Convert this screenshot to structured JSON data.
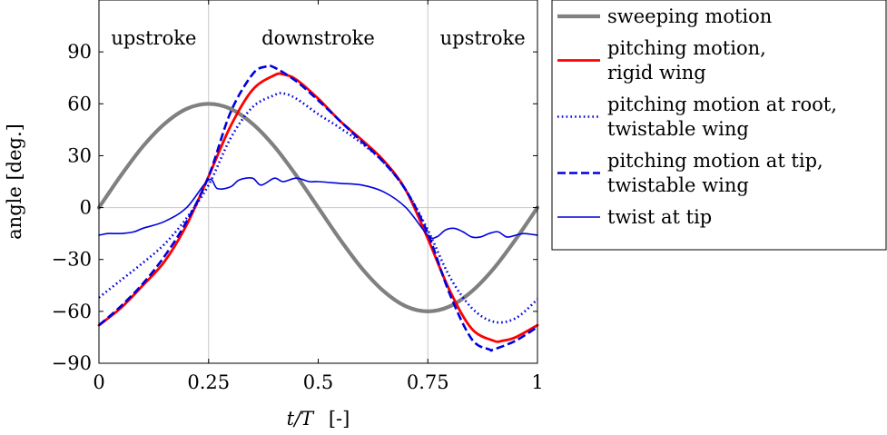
{
  "chart_data": {
    "type": "line",
    "xlabel_italic": "t/T",
    "xlabel_unit": "[-]",
    "ylabel": "angle [deg.]",
    "xlim": [
      0,
      1
    ],
    "ylim": [
      -90,
      120
    ],
    "xticks": [
      0,
      0.25,
      0.5,
      0.75,
      1
    ],
    "xtick_labels": [
      "0",
      "0.25",
      "0.5",
      "0.75",
      "1"
    ],
    "yticks": [
      -90,
      -60,
      -30,
      0,
      30,
      60,
      90
    ],
    "ytick_labels": [
      "−90",
      "−60",
      "−30",
      "0",
      "30",
      "60",
      "90"
    ],
    "phase_lines": [
      0.25,
      0.75
    ],
    "phases": [
      {
        "label": "upstroke",
        "x": 0.125
      },
      {
        "label": "downstroke",
        "x": 0.5
      },
      {
        "label": "upstroke",
        "x": 0.875
      }
    ],
    "grid": "zero line and phase boundaries only",
    "legend_position": "right, outside plot",
    "series": [
      {
        "name_lines": [
          "sweeping motion"
        ],
        "color": "#808080",
        "style": "thick",
        "x": [
          0,
          0.05,
          0.1,
          0.15,
          0.2,
          0.25,
          0.3,
          0.35,
          0.4,
          0.45,
          0.5,
          0.55,
          0.6,
          0.65,
          0.7,
          0.75,
          0.8,
          0.85,
          0.9,
          0.95,
          1
        ],
        "y": [
          0,
          18.5,
          35.3,
          48.5,
          57.1,
          60,
          57.1,
          48.5,
          35.3,
          18.5,
          0,
          -18.5,
          -35.3,
          -48.5,
          -57.1,
          -60,
          -57.1,
          -48.5,
          -35.3,
          -18.5,
          0
        ]
      },
      {
        "name_lines": [
          "pitching motion,",
          "rigid wing"
        ],
        "color": "#ff0000",
        "style": "solid",
        "x": [
          0,
          0.05,
          0.1,
          0.15,
          0.2,
          0.25,
          0.3,
          0.35,
          0.4,
          0.42,
          0.45,
          0.5,
          0.55,
          0.6,
          0.65,
          0.7,
          0.75,
          0.8,
          0.85,
          0.9,
          0.92,
          0.95,
          1
        ],
        "y": [
          -68,
          -58,
          -45,
          -31,
          -10,
          18,
          47,
          68,
          76.5,
          77,
          74,
          63,
          50,
          39,
          27,
          10,
          -18,
          -48,
          -70,
          -77,
          -77,
          -75,
          -68
        ]
      },
      {
        "name_lines": [
          "pitching motion at root,",
          "twistable wing"
        ],
        "color": "#0000dd",
        "style": "dotted",
        "x": [
          0,
          0.05,
          0.1,
          0.15,
          0.2,
          0.25,
          0.3,
          0.35,
          0.4,
          0.42,
          0.45,
          0.5,
          0.55,
          0.6,
          0.65,
          0.7,
          0.75,
          0.8,
          0.85,
          0.9,
          0.95,
          1
        ],
        "y": [
          -52,
          -42,
          -32,
          -21,
          -6,
          13,
          40,
          58,
          65,
          66,
          63,
          54,
          46,
          37,
          26,
          10,
          -13,
          -40,
          -58,
          -66,
          -64,
          -53
        ]
      },
      {
        "name_lines": [
          "pitching motion at tip,",
          "twistable wing"
        ],
        "color": "#0000dd",
        "style": "dashed",
        "x": [
          0,
          0.05,
          0.1,
          0.15,
          0.2,
          0.25,
          0.3,
          0.35,
          0.38,
          0.4,
          0.45,
          0.5,
          0.55,
          0.6,
          0.65,
          0.7,
          0.75,
          0.8,
          0.85,
          0.89,
          0.9,
          0.95,
          1
        ],
        "y": [
          -68,
          -57,
          -44,
          -28,
          -8,
          18,
          55,
          77,
          81.5,
          81,
          73,
          62,
          50,
          38,
          26,
          10,
          -15,
          -50,
          -76,
          -82,
          -82,
          -77,
          -69
        ]
      },
      {
        "name_lines": [
          "twist at tip"
        ],
        "color": "#0000dd",
        "style": "thin",
        "x": [
          0,
          0.02,
          0.05,
          0.08,
          0.1,
          0.15,
          0.2,
          0.25,
          0.27,
          0.3,
          0.32,
          0.35,
          0.37,
          0.4,
          0.42,
          0.45,
          0.48,
          0.5,
          0.55,
          0.6,
          0.65,
          0.7,
          0.75,
          0.77,
          0.79,
          0.81,
          0.83,
          0.85,
          0.87,
          0.89,
          0.91,
          0.93,
          0.95,
          0.97,
          1
        ],
        "y": [
          -16,
          -15,
          -15,
          -14,
          -12,
          -8,
          0,
          16,
          11,
          12,
          16,
          17,
          13,
          17,
          15,
          17,
          15,
          15,
          14,
          13,
          9,
          0,
          -16,
          -17,
          -13,
          -12,
          -14,
          -17,
          -17,
          -15,
          -14,
          -17,
          -16,
          -15,
          -16
        ]
      }
    ]
  }
}
